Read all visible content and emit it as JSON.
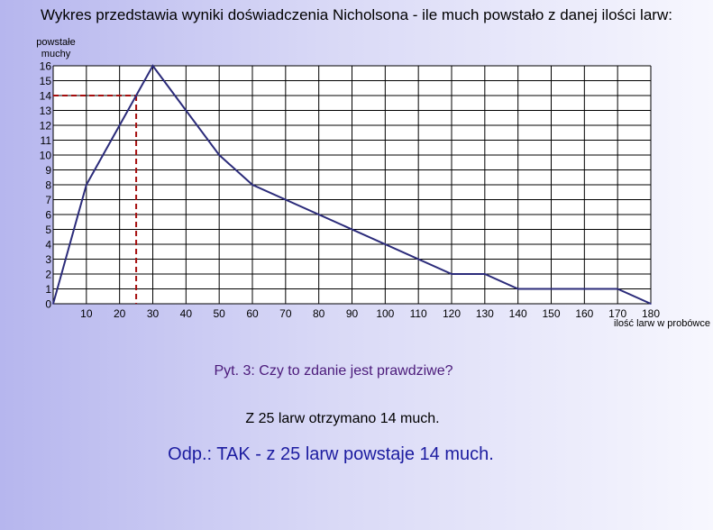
{
  "page": {
    "title": "Wykres przedstawia wyniki doświadczenia Nicholsona - ile much powstało z danej ilości larw:",
    "question": "Pyt. 3: Czy to zdanie jest prawdziwe?",
    "statement": "Z 25 larw otrzymano 14 much.",
    "answer": "Odp.: TAK - z 25 larw powstaje 14 much."
  },
  "colors": {
    "series_line": "#2b2b7a",
    "guide_line": "#a50d0d",
    "grid": "#000000",
    "question_text": "#4b1a7a",
    "answer_text": "#1c1ca0"
  },
  "chart_data": {
    "type": "line",
    "ylabel_lines": [
      "powstałe",
      "muchy"
    ],
    "xlabel": "ilość larw w probówce",
    "xlim": [
      0,
      180
    ],
    "ylim": [
      0,
      16
    ],
    "grid": true,
    "x_gridlines": [
      0,
      10,
      20,
      30,
      40,
      50,
      60,
      70,
      80,
      90,
      100,
      110,
      120,
      130,
      140,
      150,
      160,
      170,
      180
    ],
    "x_ticks": [
      "10",
      "20",
      "30",
      "40",
      "50",
      "60",
      "70",
      "80",
      "90",
      "100",
      "110",
      "120",
      "130",
      "140",
      "150",
      "160",
      "170",
      "180"
    ],
    "y_ticks": [
      "0",
      "1",
      "2",
      "3",
      "4",
      "5",
      "6",
      "7",
      "8",
      "9",
      "10",
      "11",
      "12",
      "13",
      "14",
      "15",
      "16"
    ],
    "series": [
      {
        "x": [
          0,
          10,
          30,
          40,
          50,
          60,
          120,
          130,
          140,
          170,
          180
        ],
        "y": [
          0,
          8,
          16,
          13,
          10,
          8,
          2,
          2,
          1,
          1,
          0
        ]
      }
    ],
    "guide": {
      "x": 25,
      "y": 14,
      "style": "dashed"
    }
  }
}
